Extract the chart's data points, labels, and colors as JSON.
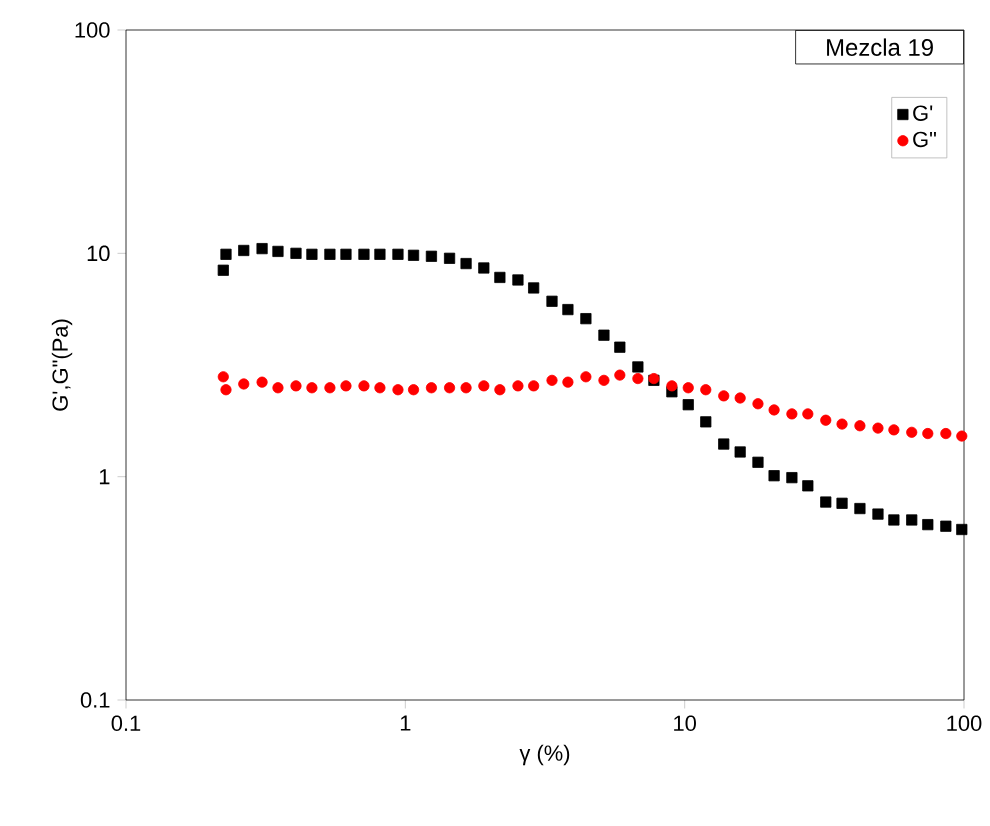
{
  "chart_data": {
    "type": "scatter",
    "xlabel": "γ (%)",
    "ylabel": "G',G\"(Pa)",
    "annotations": [
      "Mezcla 19"
    ],
    "log": "xy",
    "legend": "top right",
    "x": [
      0.223,
      0.228,
      0.264,
      0.307,
      0.35,
      0.406,
      0.463,
      0.537,
      0.613,
      0.711,
      0.811,
      0.941,
      1.07,
      1.24,
      1.44,
      1.65,
      1.91,
      2.18,
      2.53,
      2.88,
      3.35,
      3.82,
      4.43,
      5.14,
      5.86,
      6.8,
      7.76,
      9.0,
      10.3,
      11.9,
      13.8,
      15.8,
      18.3,
      20.9,
      24.2,
      27.6,
      32.0,
      36.6,
      42.4,
      49.2,
      56.1,
      65.0,
      74.2,
      86.1,
      98.2
    ],
    "series": [
      {
        "name": "G'",
        "color": "#000000",
        "marker": "square",
        "values": [
          8.4,
          9.9,
          10.3,
          10.5,
          10.2,
          10.0,
          9.9,
          9.9,
          9.9,
          9.9,
          9.9,
          9.9,
          9.8,
          9.7,
          9.5,
          9.0,
          8.6,
          7.8,
          7.6,
          7.0,
          6.1,
          5.6,
          5.1,
          4.3,
          3.8,
          3.1,
          2.7,
          2.4,
          2.1,
          1.76,
          1.4,
          1.29,
          1.16,
          1.01,
          0.99,
          0.91,
          0.77,
          0.76,
          0.72,
          0.68,
          0.64,
          0.64,
          0.61,
          0.6,
          0.58
        ]
      },
      {
        "name": "G\"",
        "color": "#ff0000",
        "marker": "circle",
        "values": [
          2.8,
          2.45,
          2.6,
          2.65,
          2.5,
          2.55,
          2.5,
          2.5,
          2.55,
          2.55,
          2.5,
          2.45,
          2.45,
          2.5,
          2.5,
          2.5,
          2.55,
          2.45,
          2.55,
          2.55,
          2.7,
          2.65,
          2.8,
          2.7,
          2.85,
          2.75,
          2.75,
          2.55,
          2.5,
          2.45,
          2.3,
          2.25,
          2.12,
          1.99,
          1.91,
          1.91,
          1.79,
          1.72,
          1.69,
          1.65,
          1.62,
          1.58,
          1.56,
          1.56,
          1.52
        ]
      }
    ],
    "xlim": [
      0.1,
      100
    ],
    "ylim": [
      0.1,
      100
    ],
    "xticks": [
      0.1,
      1,
      10,
      100
    ],
    "yticks": [
      0.1,
      1,
      10,
      100
    ]
  }
}
